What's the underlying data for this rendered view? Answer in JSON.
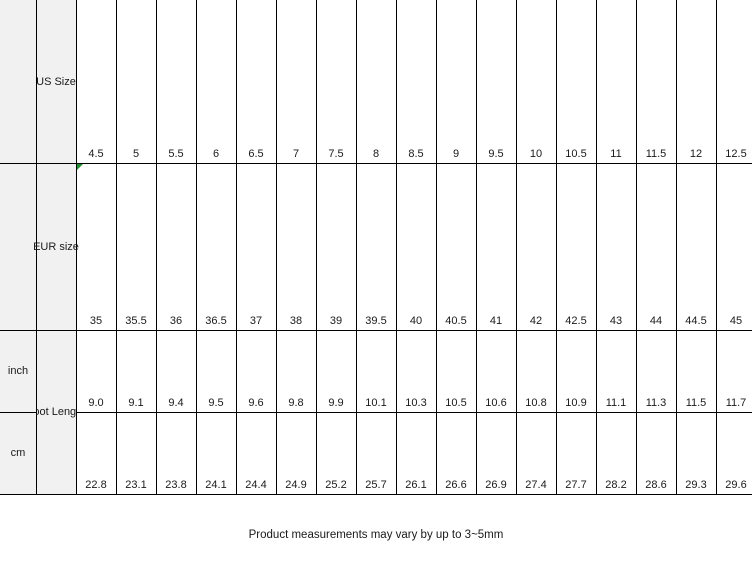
{
  "chart_data": {
    "type": "table",
    "row_headers": {
      "us": "US Size",
      "eur": "EUR size",
      "inch": "inch",
      "cm": "cm",
      "foot_length": "Foot Length"
    },
    "columns_count": 17,
    "rows": {
      "us_size": [
        "4.5",
        "5",
        "5.5",
        "6",
        "6.5",
        "7",
        "7.5",
        "8",
        "8.5",
        "9",
        "9.5",
        "10",
        "10.5",
        "11",
        "11.5",
        "12",
        "12.5"
      ],
      "eur_size": [
        "35",
        "35.5",
        "36",
        "36.5",
        "37",
        "38",
        "39",
        "39.5",
        "40",
        "40.5",
        "41",
        "42",
        "42.5",
        "43",
        "44",
        "44.5",
        "45"
      ],
      "foot_length_inch": [
        "9.0",
        "9.1",
        "9.4",
        "9.5",
        "9.6",
        "9.8",
        "9.9",
        "10.1",
        "10.3",
        "10.5",
        "10.6",
        "10.8",
        "10.9",
        "11.1",
        "11.3",
        "11.5",
        "11.7"
      ],
      "foot_length_cm": [
        "22.8",
        "23.1",
        "23.8",
        "24.1",
        "24.4",
        "24.9",
        "25.2",
        "25.7",
        "26.1",
        "26.6",
        "26.9",
        "27.4",
        "27.7",
        "28.2",
        "28.6",
        "29.3",
        "29.6"
      ]
    },
    "note": "Product measurements may vary by up to 3~5mm"
  },
  "colors": {
    "header_bg": "#f1f1f1",
    "grid_line": "#000000",
    "text": "#1a1a1a",
    "background": "#ffffff",
    "error_triangle_green": "#1e8e2e"
  }
}
